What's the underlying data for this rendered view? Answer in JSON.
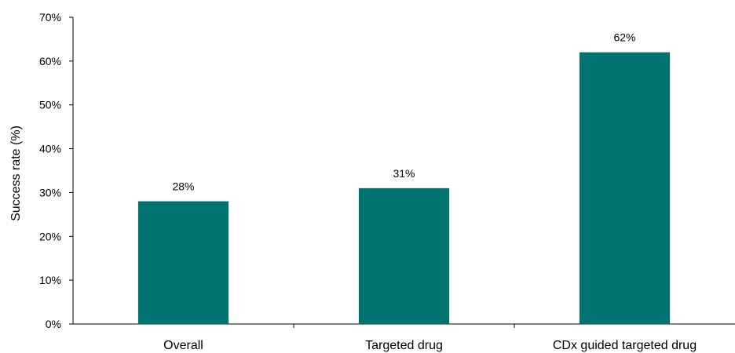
{
  "chart_data": {
    "type": "bar",
    "title": "",
    "xlabel": "",
    "ylabel": "Success rate (%)",
    "ylim": [
      0,
      70
    ],
    "y_ticks": [
      "0%",
      "10%",
      "20%",
      "30%",
      "40%",
      "50%",
      "60%",
      "70%"
    ],
    "categories": [
      "Overall",
      "Targeted drug",
      "CDx guided targeted drug"
    ],
    "values": [
      28,
      31,
      62
    ],
    "data_labels": [
      "28%",
      "31%",
      "62%"
    ],
    "bar_color": "#007370",
    "grid": false,
    "legend": "none"
  }
}
